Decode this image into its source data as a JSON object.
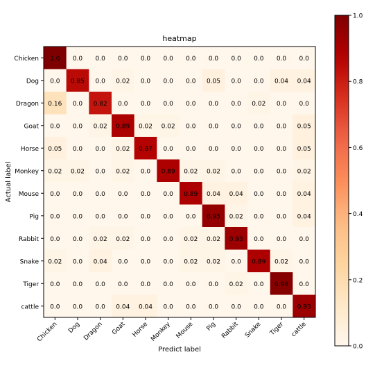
{
  "chart_data": {
    "type": "heatmap",
    "title": "heatmap",
    "xlabel": "Predict label",
    "ylabel": "Actual label",
    "x_categories": [
      "Chicken",
      "Dog",
      "Dragon",
      "Goat",
      "Horse",
      "Monkey",
      "Mouse",
      "Pig",
      "Rabbit",
      "Snake",
      "Tiger",
      "cattle"
    ],
    "y_categories": [
      "Chicken",
      "Dog",
      "Dragon",
      "Goat",
      "Horse",
      "Monkey",
      "Mouse",
      "Pig",
      "Rabbit",
      "Snake",
      "Tiger",
      "cattle"
    ],
    "values": [
      [
        1.0,
        0.0,
        0.0,
        0.0,
        0.0,
        0.0,
        0.0,
        0.0,
        0.0,
        0.0,
        0.0,
        0.0
      ],
      [
        0.0,
        0.85,
        0.0,
        0.02,
        0.0,
        0.0,
        0.0,
        0.05,
        0.0,
        0.0,
        0.04,
        0.04
      ],
      [
        0.16,
        0.0,
        0.82,
        0.0,
        0.0,
        0.0,
        0.0,
        0.0,
        0.0,
        0.02,
        0.0,
        0.0
      ],
      [
        0.0,
        0.0,
        0.02,
        0.89,
        0.02,
        0.02,
        0.0,
        0.0,
        0.0,
        0.0,
        0.0,
        0.05
      ],
      [
        0.05,
        0.0,
        0.0,
        0.02,
        0.87,
        0.0,
        0.0,
        0.0,
        0.0,
        0.0,
        0.0,
        0.05
      ],
      [
        0.02,
        0.02,
        0.0,
        0.02,
        0.0,
        0.89,
        0.02,
        0.02,
        0.0,
        0.0,
        0.0,
        0.02
      ],
      [
        0.0,
        0.0,
        0.0,
        0.0,
        0.0,
        0.0,
        0.89,
        0.04,
        0.04,
        0.0,
        0.0,
        0.04
      ],
      [
        0.0,
        0.0,
        0.0,
        0.0,
        0.0,
        0.0,
        0.0,
        0.95,
        0.02,
        0.0,
        0.0,
        0.04
      ],
      [
        0.0,
        0.0,
        0.02,
        0.02,
        0.0,
        0.0,
        0.02,
        0.02,
        0.93,
        0.0,
        0.0,
        0.0
      ],
      [
        0.02,
        0.0,
        0.04,
        0.0,
        0.0,
        0.0,
        0.02,
        0.02,
        0.0,
        0.89,
        0.02,
        0.0
      ],
      [
        0.0,
        0.0,
        0.0,
        0.0,
        0.0,
        0.0,
        0.0,
        0.0,
        0.02,
        0.0,
        0.98,
        0.0
      ],
      [
        0.0,
        0.0,
        0.0,
        0.04,
        0.04,
        0.0,
        0.0,
        0.0,
        0.0,
        0.0,
        0.0,
        0.93
      ]
    ],
    "value_labels": [
      [
        "1.0",
        "0.0",
        "0.0",
        "0.0",
        "0.0",
        "0.0",
        "0.0",
        "0.0",
        "0.0",
        "0.0",
        "0.0",
        "0.0"
      ],
      [
        "0.0",
        "0.85",
        "0.0",
        "0.02",
        "0.0",
        "0.0",
        "0.0",
        "0.05",
        "0.0",
        "0.0",
        "0.04",
        "0.04"
      ],
      [
        "0.16",
        "0.0",
        "0.82",
        "0.0",
        "0.0",
        "0.0",
        "0.0",
        "0.0",
        "0.0",
        "0.02",
        "0.0",
        "0.0"
      ],
      [
        "0.0",
        "0.0",
        "0.02",
        "0.89",
        "0.02",
        "0.02",
        "0.0",
        "0.0",
        "0.0",
        "0.0",
        "0.0",
        "0.05"
      ],
      [
        "0.05",
        "0.0",
        "0.0",
        "0.02",
        "0.87",
        "0.0",
        "0.0",
        "0.0",
        "0.0",
        "0.0",
        "0.0",
        "0.05"
      ],
      [
        "0.02",
        "0.02",
        "0.0",
        "0.02",
        "0.0",
        "0.89",
        "0.02",
        "0.02",
        "0.0",
        "0.0",
        "0.0",
        "0.02"
      ],
      [
        "0.0",
        "0.0",
        "0.0",
        "0.0",
        "0.0",
        "0.0",
        "0.89",
        "0.04",
        "0.04",
        "0.0",
        "0.0",
        "0.04"
      ],
      [
        "0.0",
        "0.0",
        "0.0",
        "0.0",
        "0.0",
        "0.0",
        "0.0",
        "0.95",
        "0.02",
        "0.0",
        "0.0",
        "0.04"
      ],
      [
        "0.0",
        "0.0",
        "0.02",
        "0.02",
        "0.0",
        "0.0",
        "0.02",
        "0.02",
        "0.93",
        "0.0",
        "0.0",
        "0.0"
      ],
      [
        "0.02",
        "0.0",
        "0.04",
        "0.0",
        "0.0",
        "0.0",
        "0.02",
        "0.02",
        "0.0",
        "0.89",
        "0.02",
        "0.0"
      ],
      [
        "0.0",
        "0.0",
        "0.0",
        "0.0",
        "0.0",
        "0.0",
        "0.0",
        "0.0",
        "0.02",
        "0.0",
        "0.98",
        "0.0"
      ],
      [
        "0.0",
        "0.0",
        "0.0",
        "0.04",
        "0.04",
        "0.0",
        "0.0",
        "0.0",
        "0.0",
        "0.0",
        "0.0",
        "0.93"
      ]
    ],
    "colorbar": {
      "range": [
        0.0,
        1.0
      ],
      "ticks": [
        0.0,
        0.2,
        0.4,
        0.6,
        0.8,
        1.0
      ],
      "tick_labels": [
        "0.0",
        "0.2",
        "0.4",
        "0.6",
        "0.8",
        "1.0"
      ],
      "colormap": "OrRd",
      "color_low": "#fff7ec",
      "color_high": "#7f0000"
    },
    "grid": false
  }
}
